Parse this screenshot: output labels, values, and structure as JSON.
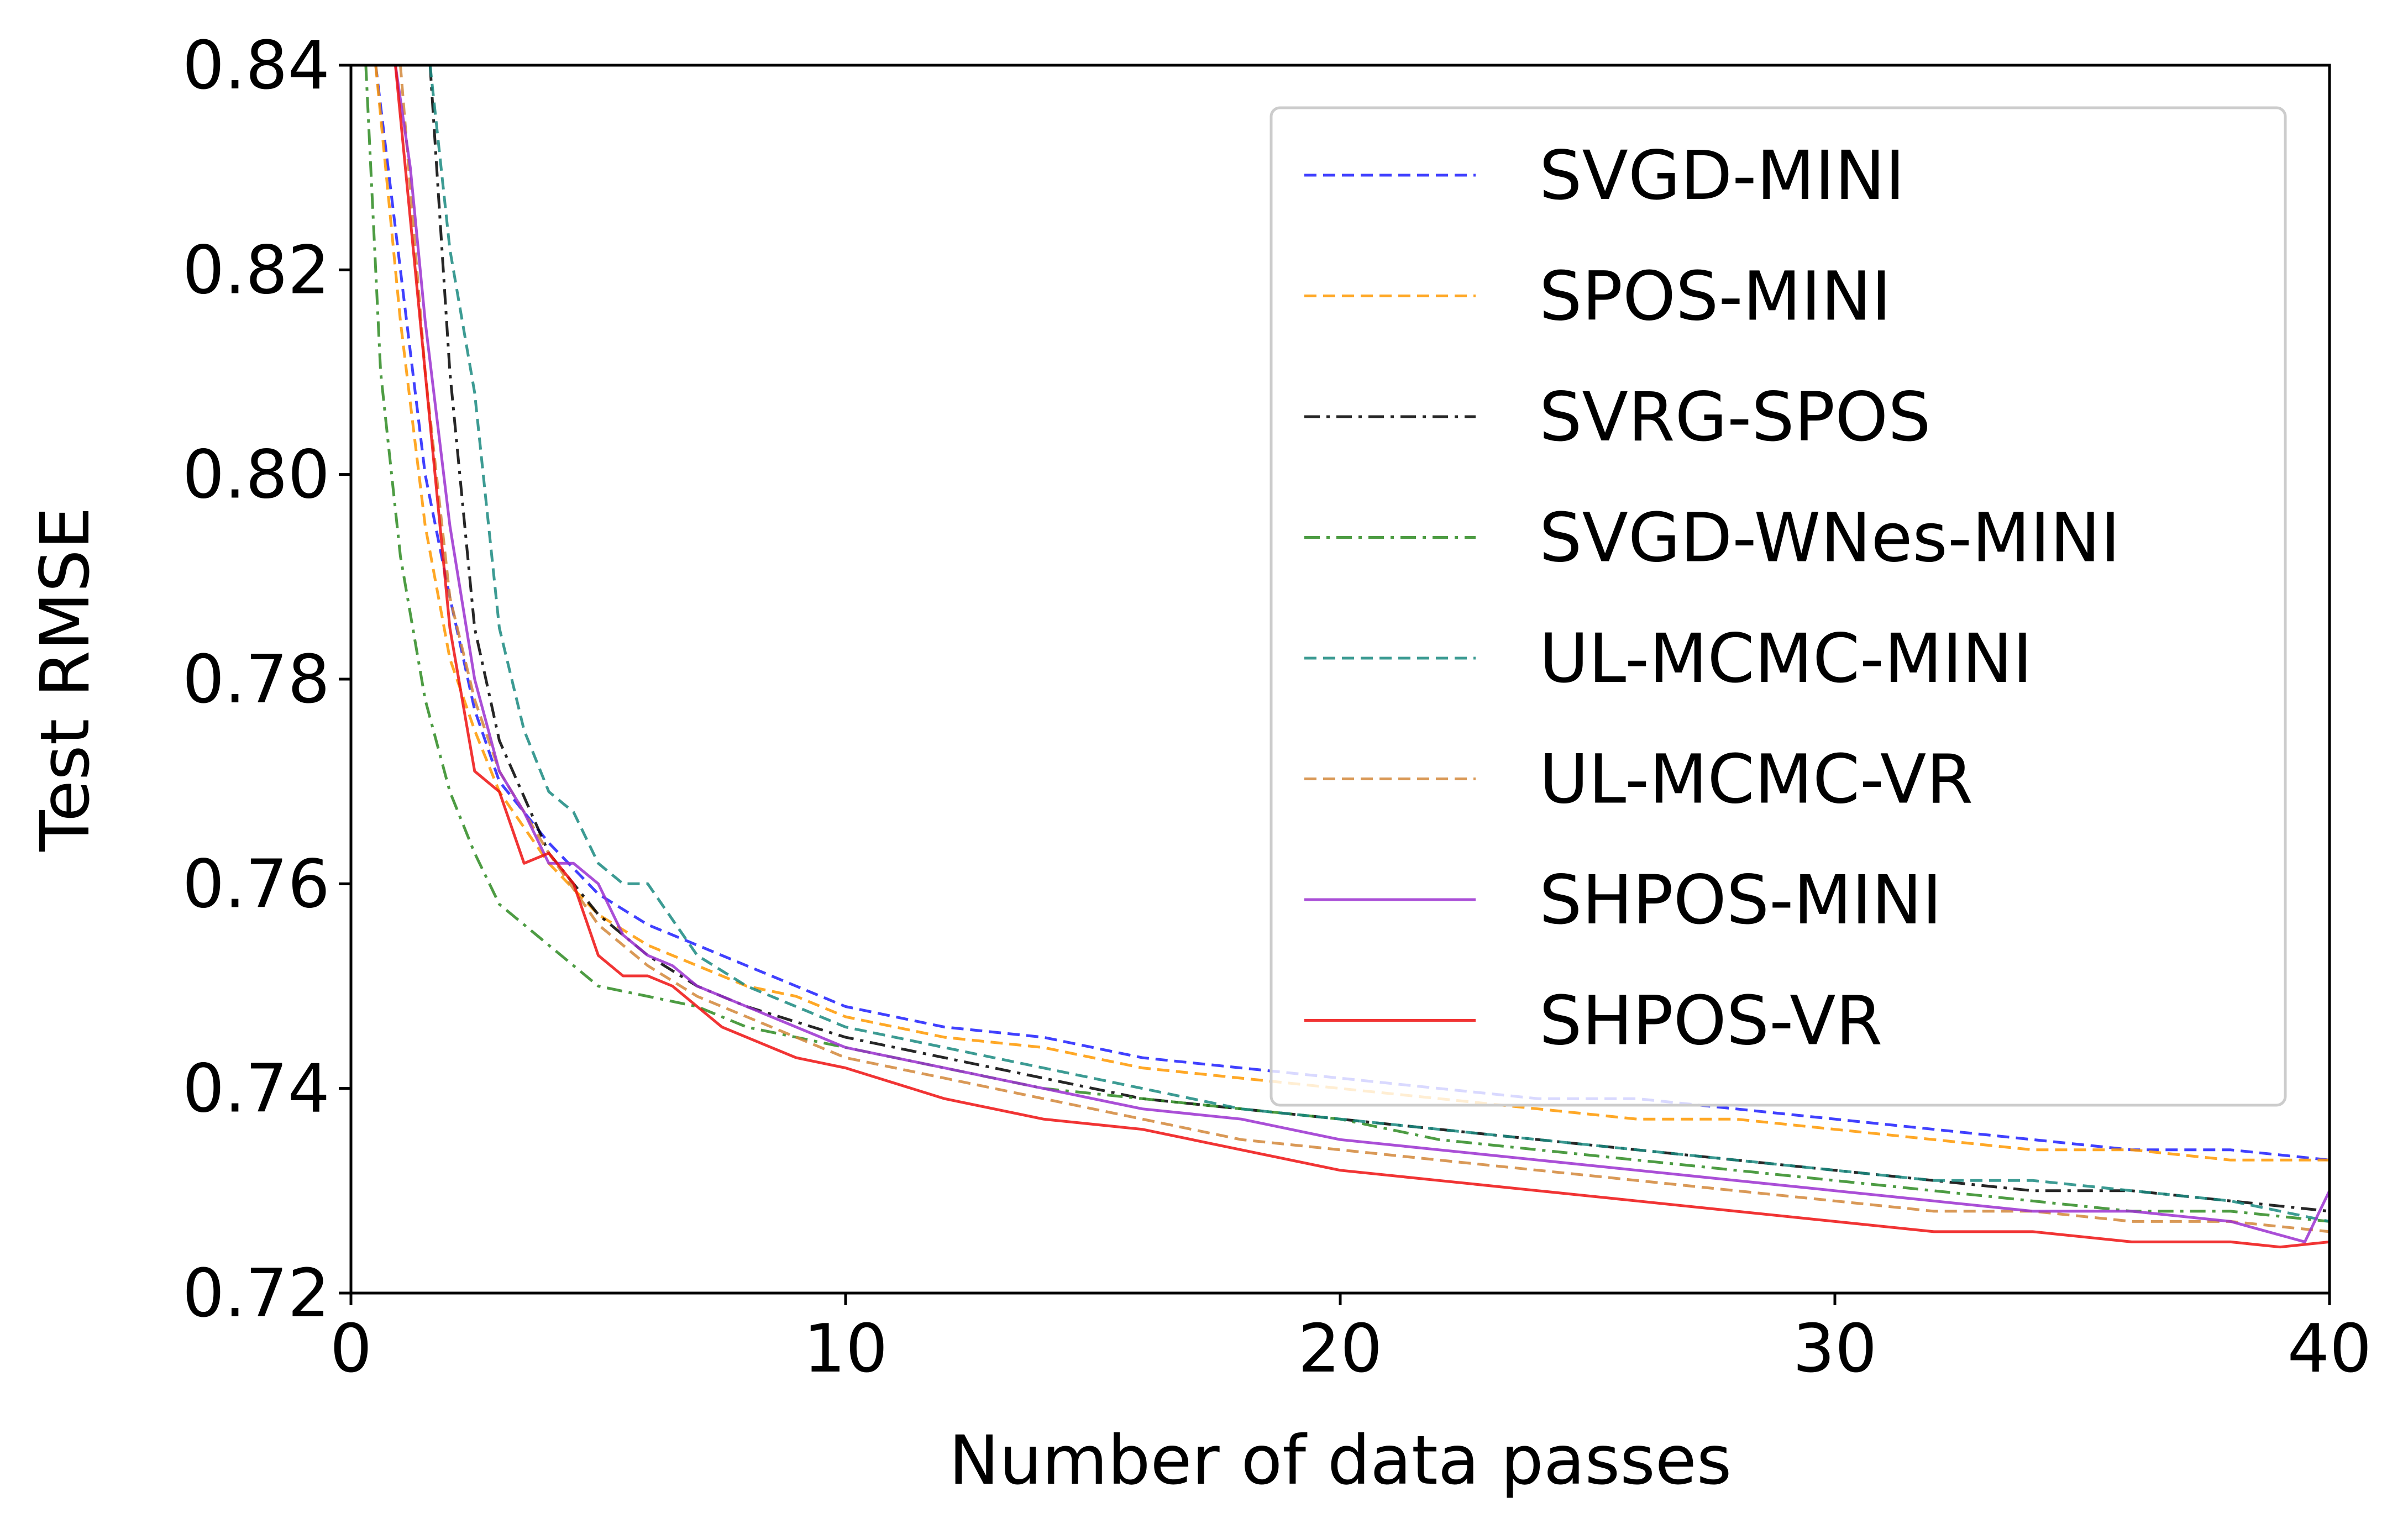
{
  "chart_data": {
    "type": "line",
    "title": "",
    "xlabel": "Number of data passes",
    "ylabel": "Test RMSE",
    "xlim": [
      0,
      40
    ],
    "ylim": [
      0.72,
      0.84
    ],
    "xticks": [
      "0",
      "10",
      "20",
      "30",
      "40"
    ],
    "yticks": [
      "0.72",
      "0.74",
      "0.76",
      "0.78",
      "0.80",
      "0.82",
      "0.84"
    ],
    "grid": false,
    "legend_position": "top-right",
    "series": [
      {
        "name": "SVGD-MINI",
        "color": "#1f1fff",
        "style": "dashed",
        "x": [
          0.5,
          1,
          1.5,
          2,
          2.5,
          3,
          4,
          5,
          6,
          7,
          8,
          9,
          10,
          12,
          14,
          16,
          18,
          20,
          22,
          24,
          26,
          28,
          30,
          32,
          34,
          36,
          38,
          40
        ],
        "y": [
          0.84,
          0.82,
          0.8,
          0.788,
          0.777,
          0.77,
          0.764,
          0.759,
          0.756,
          0.754,
          0.752,
          0.75,
          0.748,
          0.746,
          0.745,
          0.743,
          0.742,
          0.741,
          0.74,
          0.739,
          0.739,
          0.738,
          0.737,
          0.736,
          0.735,
          0.734,
          0.734,
          0.733
        ]
      },
      {
        "name": "SPOS-MINI",
        "color": "#ff9900",
        "style": "dashed",
        "x": [
          0.5,
          1,
          1.5,
          2,
          2.5,
          3,
          4,
          5,
          6,
          7,
          8,
          9,
          10,
          12,
          14,
          16,
          18,
          20,
          22,
          24,
          26,
          28,
          30,
          32,
          34,
          36,
          38,
          40
        ],
        "y": [
          0.84,
          0.815,
          0.795,
          0.782,
          0.775,
          0.769,
          0.762,
          0.757,
          0.754,
          0.752,
          0.75,
          0.749,
          0.747,
          0.745,
          0.744,
          0.742,
          0.741,
          0.74,
          0.739,
          0.738,
          0.737,
          0.737,
          0.736,
          0.735,
          0.734,
          0.734,
          0.733,
          0.733
        ]
      },
      {
        "name": "SVRG-SPOS",
        "color": "#000000",
        "style": "dashdot",
        "x": [
          1.6,
          2,
          2.5,
          3,
          4,
          5,
          6,
          7,
          8,
          10,
          12,
          14,
          16,
          18,
          20,
          22,
          24,
          26,
          28,
          30,
          32,
          34,
          36,
          38,
          40
        ],
        "y": [
          0.84,
          0.81,
          0.785,
          0.774,
          0.763,
          0.757,
          0.753,
          0.75,
          0.748,
          0.745,
          0.743,
          0.741,
          0.739,
          0.738,
          0.737,
          0.736,
          0.735,
          0.734,
          0.733,
          0.732,
          0.731,
          0.73,
          0.73,
          0.729,
          0.728
        ]
      },
      {
        "name": "SVGD-WNes-MINI",
        "color": "#2e8b22",
        "style": "dashdot",
        "x": [
          0.3,
          0.6,
          1,
          1.5,
          2,
          2.5,
          3,
          4,
          5,
          6,
          7,
          8,
          9,
          10,
          12,
          14,
          16,
          18,
          20,
          22,
          24,
          26,
          28,
          30,
          32,
          34,
          36,
          38,
          40
        ],
        "y": [
          0.84,
          0.81,
          0.792,
          0.778,
          0.769,
          0.763,
          0.758,
          0.754,
          0.75,
          0.749,
          0.748,
          0.746,
          0.745,
          0.744,
          0.742,
          0.74,
          0.739,
          0.738,
          0.737,
          0.735,
          0.734,
          0.733,
          0.732,
          0.731,
          0.73,
          0.729,
          0.728,
          0.728,
          0.727
        ]
      },
      {
        "name": "UL-MCMC-MINI",
        "color": "#1a8a80",
        "style": "dashed",
        "x": [
          1.6,
          2,
          2.5,
          3,
          3.5,
          4,
          4.5,
          5,
          5.5,
          6,
          7,
          8,
          10,
          12,
          14,
          16,
          18,
          20,
          22,
          24,
          26,
          28,
          30,
          32,
          34,
          36,
          38,
          40
        ],
        "y": [
          0.84,
          0.822,
          0.808,
          0.785,
          0.775,
          0.769,
          0.767,
          0.762,
          0.76,
          0.76,
          0.753,
          0.75,
          0.746,
          0.744,
          0.742,
          0.74,
          0.738,
          0.737,
          0.736,
          0.735,
          0.734,
          0.733,
          0.732,
          0.731,
          0.731,
          0.73,
          0.729,
          0.727
        ]
      },
      {
        "name": "UL-MCMC-VR",
        "color": "#d2873a",
        "style": "dashed",
        "x": [
          1,
          1.5,
          2,
          2.5,
          3,
          4,
          5,
          6,
          7,
          8,
          10,
          12,
          14,
          16,
          18,
          20,
          22,
          24,
          26,
          28,
          30,
          32,
          34,
          36,
          38,
          40
        ],
        "y": [
          0.84,
          0.81,
          0.788,
          0.778,
          0.771,
          0.763,
          0.756,
          0.752,
          0.749,
          0.747,
          0.743,
          0.741,
          0.739,
          0.737,
          0.735,
          0.734,
          0.733,
          0.732,
          0.731,
          0.73,
          0.729,
          0.728,
          0.728,
          0.727,
          0.727,
          0.726
        ]
      },
      {
        "name": "SHPOS-MINI",
        "color": "#9b30d0",
        "style": "solid",
        "x": [
          0.9,
          1.2,
          1.5,
          2,
          2.5,
          3,
          3.5,
          4,
          4.5,
          5,
          5.5,
          6,
          6.5,
          7,
          8,
          9,
          10,
          12,
          14,
          16,
          18,
          20,
          22,
          24,
          26,
          28,
          30,
          32,
          34,
          36,
          38,
          39.5,
          40
        ],
        "y": [
          0.84,
          0.83,
          0.815,
          0.795,
          0.78,
          0.771,
          0.767,
          0.762,
          0.762,
          0.76,
          0.755,
          0.753,
          0.752,
          0.75,
          0.748,
          0.746,
          0.744,
          0.742,
          0.74,
          0.738,
          0.737,
          0.735,
          0.734,
          0.733,
          0.732,
          0.731,
          0.73,
          0.729,
          0.728,
          0.728,
          0.727,
          0.725,
          0.73
        ]
      },
      {
        "name": "SHPOS-VR",
        "color": "#ee1111",
        "style": "solid",
        "x": [
          0.9,
          1.2,
          1.5,
          2,
          2.5,
          3,
          3.5,
          4,
          4.5,
          5,
          5.5,
          6,
          6.5,
          7,
          7.5,
          8,
          9,
          10,
          12,
          14,
          16,
          18,
          20,
          22,
          24,
          26,
          28,
          30,
          32,
          34,
          36,
          38,
          39,
          40
        ],
        "y": [
          0.84,
          0.825,
          0.81,
          0.785,
          0.771,
          0.769,
          0.762,
          0.763,
          0.76,
          0.753,
          0.751,
          0.751,
          0.75,
          0.748,
          0.746,
          0.745,
          0.743,
          0.742,
          0.739,
          0.737,
          0.736,
          0.734,
          0.732,
          0.731,
          0.73,
          0.729,
          0.728,
          0.727,
          0.726,
          0.726,
          0.725,
          0.725,
          0.7245,
          0.725
        ]
      }
    ]
  }
}
